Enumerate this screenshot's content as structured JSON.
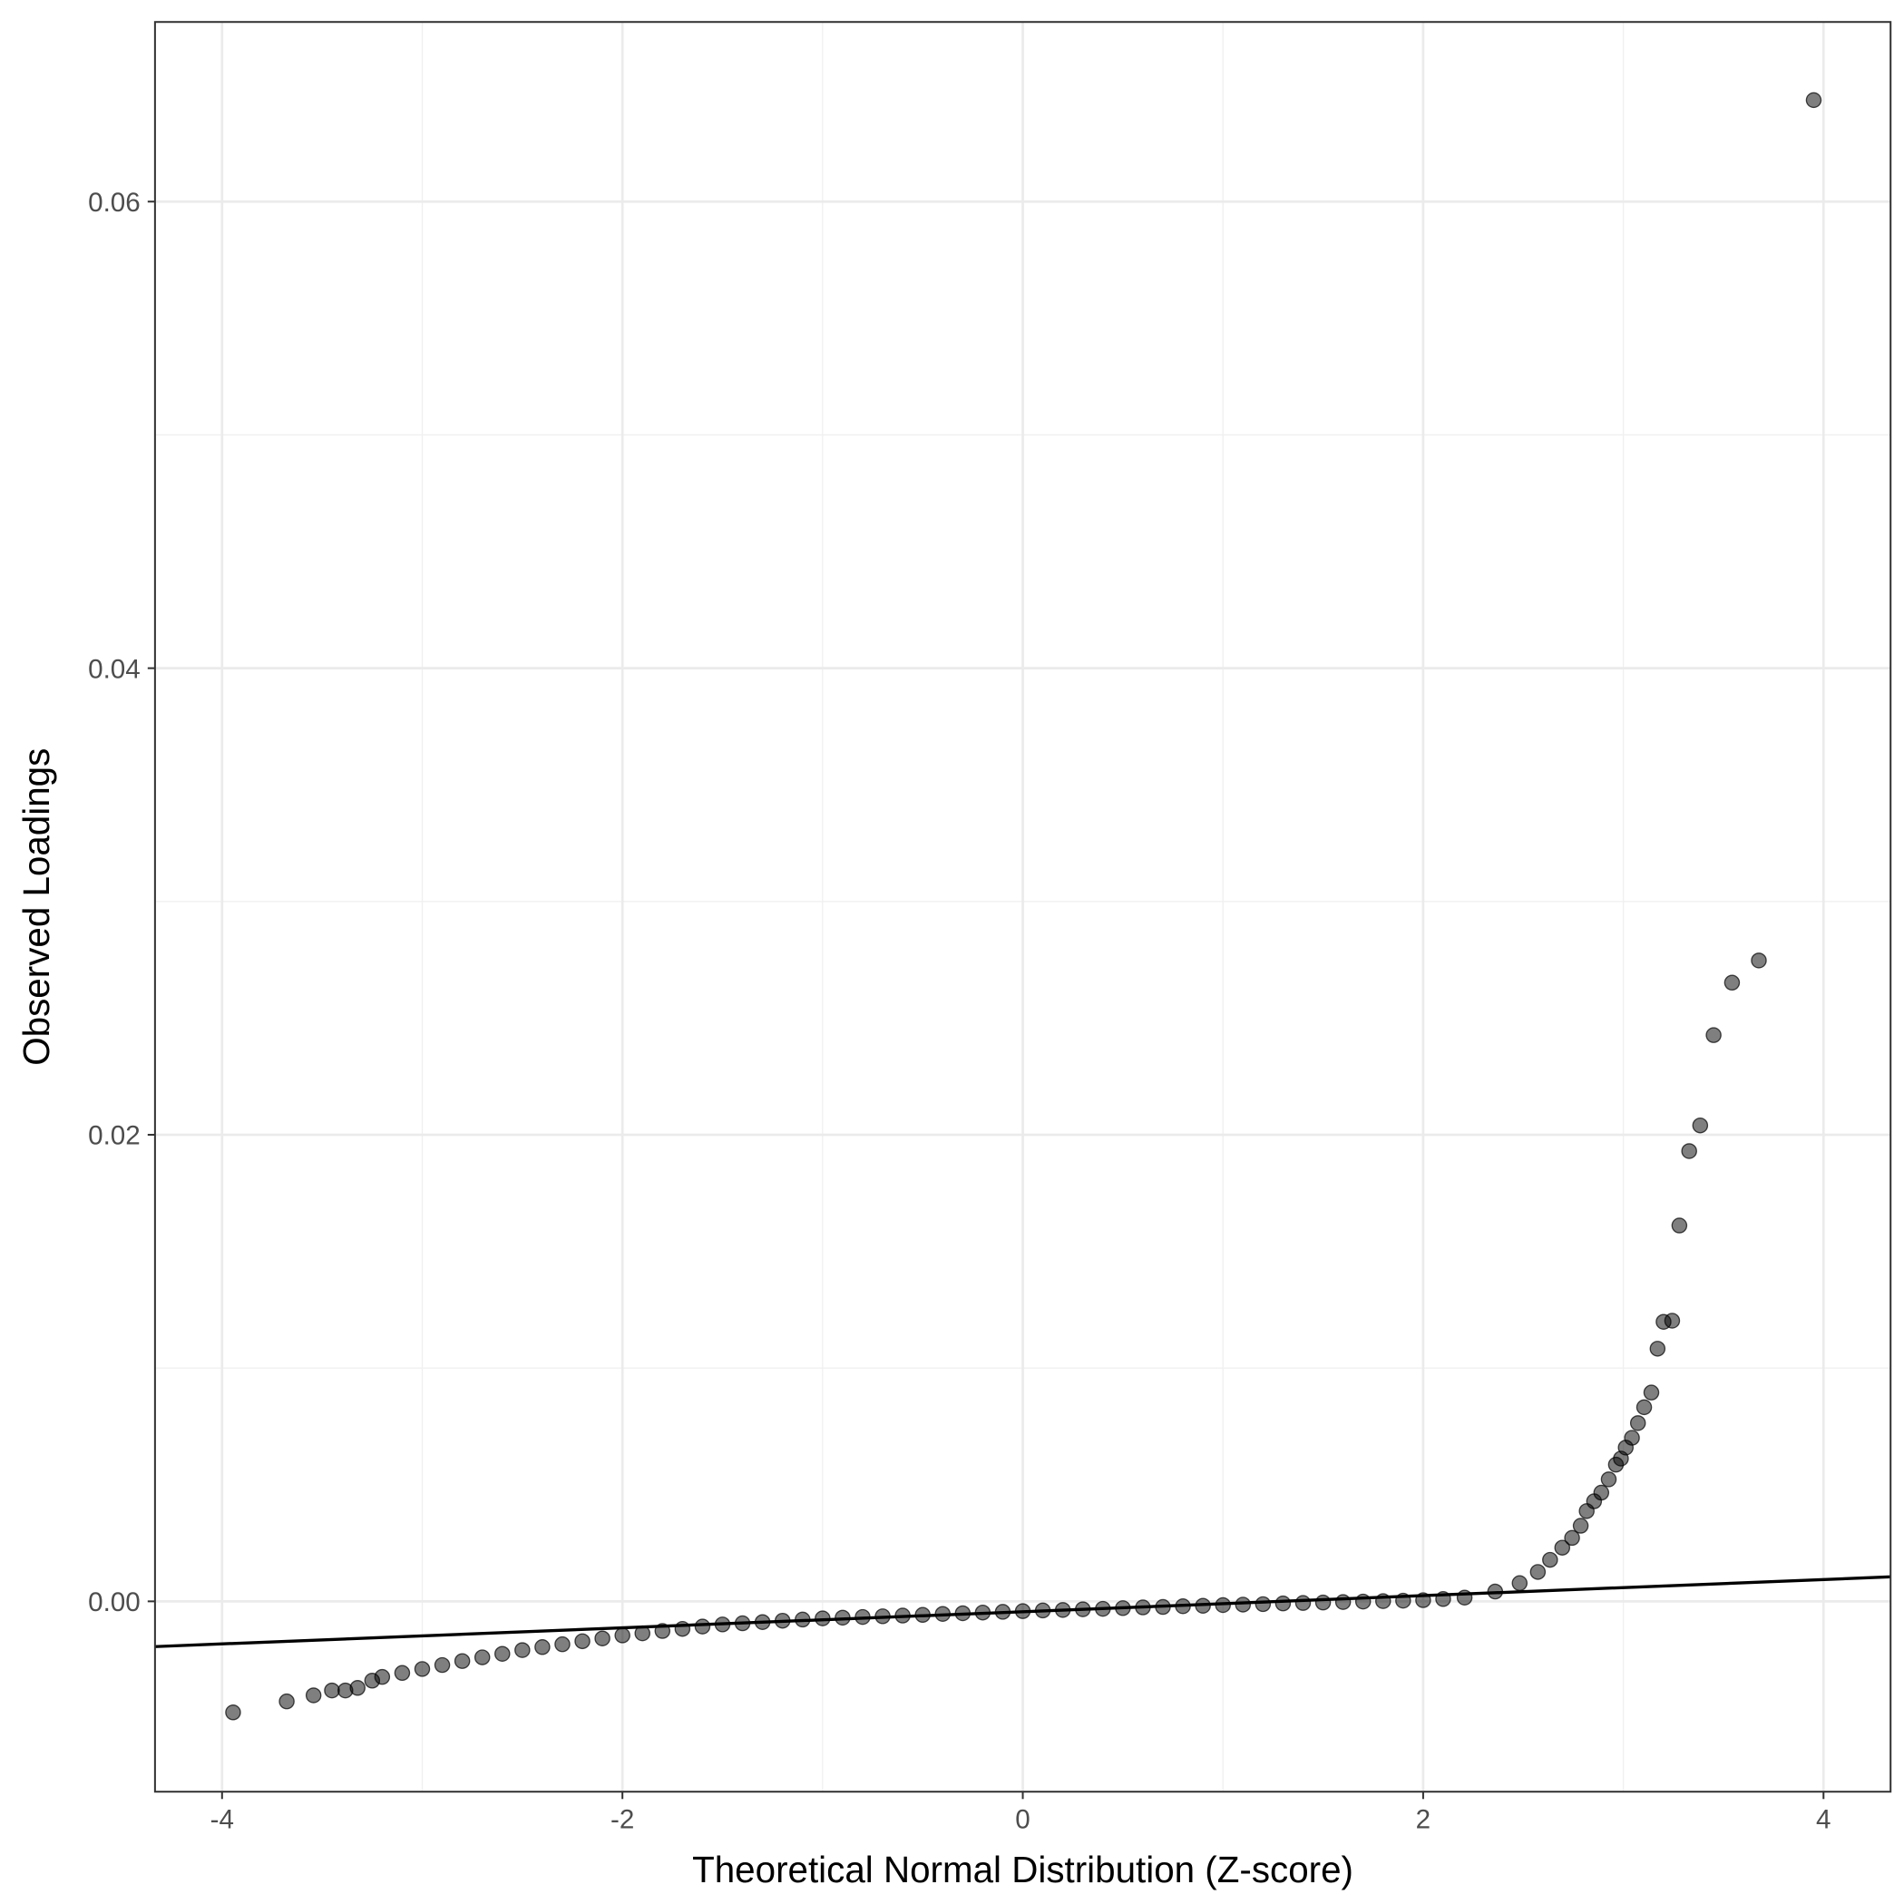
{
  "chart_data": {
    "type": "scatter",
    "x_label": "Theoretical Normal Distribution (Z-score)",
    "y_label": "Observed Loadings",
    "xlim": [
      -4.335,
      4.335
    ],
    "ylim": [
      -0.00816,
      0.0677
    ],
    "xticks": [
      -4,
      -2,
      0,
      2,
      4
    ],
    "yticks": [
      {
        "value": 0,
        "label": "0.00"
      },
      {
        "value": 0.02,
        "label": "0.02"
      },
      {
        "value": 0.04,
        "label": "0.04"
      },
      {
        "value": 0.06,
        "label": "0.06"
      }
    ],
    "grid": true,
    "color": "#000000",
    "x": [
      -3.945,
      -3.677,
      -3.543,
      -3.451,
      -3.384,
      -3.323,
      -3.25,
      -3.2,
      -3.1,
      -3.0,
      -2.9,
      -2.8,
      -2.7,
      -2.6,
      -2.5,
      -2.4,
      -2.3,
      -2.2,
      -2.1,
      -2.0,
      -1.9,
      -1.8,
      -1.7,
      -1.6,
      -1.5,
      -1.4,
      -1.3,
      -1.2,
      -1.1,
      -1.0,
      -0.9,
      -0.8,
      -0.7,
      -0.6,
      -0.5,
      -0.4,
      -0.3,
      -0.2,
      -0.1,
      0.0,
      0.1,
      0.2,
      0.3,
      0.4,
      0.5,
      0.6,
      0.7,
      0.8,
      0.9,
      1.0,
      1.1,
      1.2,
      1.3,
      1.4,
      1.5,
      1.6,
      1.7,
      1.8,
      1.9,
      2.0,
      2.1,
      2.207,
      2.36,
      2.482,
      2.573,
      2.634,
      2.695,
      2.744,
      2.787,
      2.817,
      2.854,
      2.89,
      2.927,
      2.963,
      2.988,
      3.012,
      3.043,
      3.073,
      3.104,
      3.14,
      3.171,
      3.201,
      3.244,
      3.28,
      3.329,
      3.384,
      3.451,
      3.543,
      3.677,
      3.951
    ],
    "values": [
      -0.00476,
      -0.00429,
      -0.00403,
      -0.00382,
      -0.00382,
      -0.00371,
      -0.0034,
      -0.00324,
      -0.00307,
      -0.0029,
      -0.00273,
      -0.00256,
      -0.0024,
      -0.00225,
      -0.00209,
      -0.00196,
      -0.00184,
      -0.00171,
      -0.00159,
      -0.00146,
      -0.00137,
      -0.00127,
      -0.00118,
      -0.00108,
      -0.00099,
      -0.00094,
      -0.00089,
      -0.00083,
      -0.00078,
      -0.00073,
      -0.0007,
      -0.00067,
      -0.00064,
      -0.00061,
      -0.00058,
      -0.00054,
      -0.00051,
      -0.00048,
      -0.00045,
      -0.00042,
      -0.00039,
      -0.00037,
      -0.00034,
      -0.00032,
      -0.00029,
      -0.00026,
      -0.00024,
      -0.00021,
      -0.00019,
      -0.00016,
      -0.00014,
      -0.00012,
      -9e-05,
      -7e-05,
      -5e-05,
      -3e-05,
      -1e-05,
      1e-05,
      3e-05,
      5e-05,
      0.0001,
      0.00016,
      0.00042,
      0.00078,
      0.00126,
      0.00178,
      0.0023,
      0.00272,
      0.00324,
      0.00387,
      0.00429,
      0.00466,
      0.00523,
      0.00586,
      0.00612,
      0.00659,
      0.00701,
      0.00764,
      0.00832,
      0.00895,
      0.01083,
      0.01198,
      0.01203,
      0.01611,
      0.0193,
      0.0204,
      0.02427,
      0.02652,
      0.02747,
      0.06435
    ],
    "reference_line": {
      "x": [
        -4.335,
        4.335
      ],
      "y": [
        -0.00194,
        0.00105
      ]
    }
  }
}
